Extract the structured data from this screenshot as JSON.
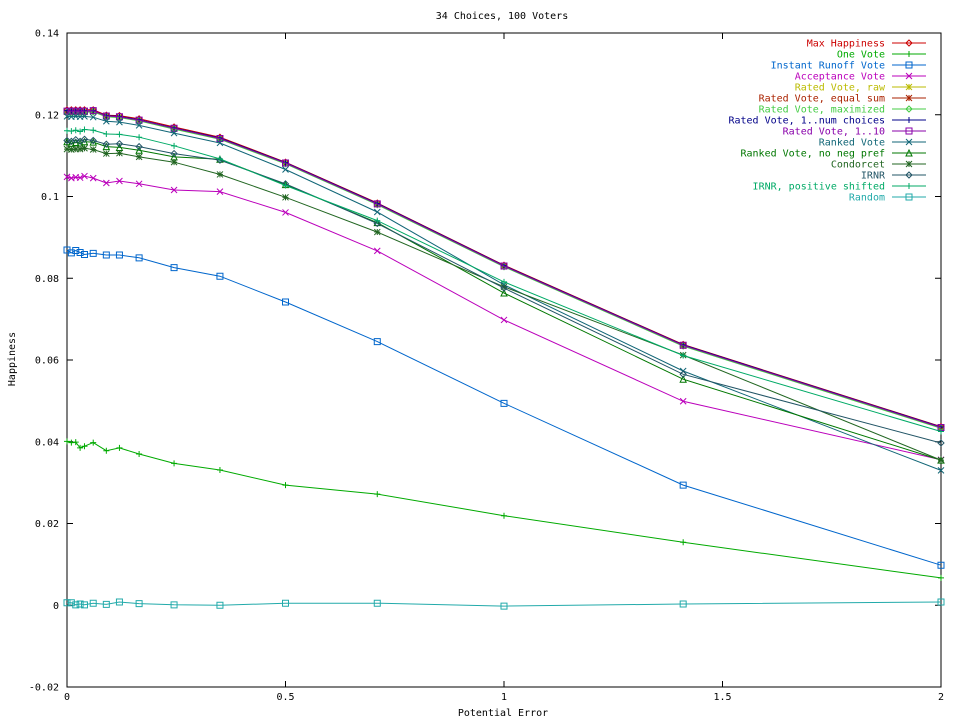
{
  "chart_data": {
    "type": "line",
    "title": "34 Choices, 100 Voters",
    "xlabel": "Potential Error",
    "ylabel": "Happiness",
    "xlim": [
      0,
      2
    ],
    "ylim": [
      -0.02,
      0.14
    ],
    "xticks": [
      0,
      0.5,
      1,
      1.5,
      2
    ],
    "xtick_labels": [
      "0",
      "0.5",
      "1",
      "1.5",
      "2"
    ],
    "yticks": [
      -0.02,
      0,
      0.02,
      0.04,
      0.06,
      0.08,
      0.1,
      0.12,
      0.14
    ],
    "ytick_labels": [
      "-0.02",
      "0",
      "0.02",
      "0.04",
      "0.06",
      "0.08",
      "0.1",
      "0.12",
      "0.14"
    ],
    "grid": false,
    "legend_position": "top-right",
    "x": [
      0,
      0.01,
      0.02,
      0.03,
      0.04,
      0.06,
      0.09,
      0.12,
      0.165,
      0.245,
      0.35,
      0.5,
      0.71,
      1.0,
      1.41,
      2.0
    ],
    "series": [
      {
        "name": "Max Happiness",
        "color": "#cc0000",
        "marker": "diamond",
        "values": [
          0.1212,
          0.1212,
          0.1212,
          0.1212,
          0.1212,
          0.1212,
          0.1199,
          0.1198,
          0.119,
          0.117,
          0.1145,
          0.1084,
          0.0984,
          0.0832,
          0.0638,
          0.0437
        ]
      },
      {
        "name": "One Vote",
        "color": "#00aa00",
        "marker": "plus",
        "values": [
          0.0401,
          0.0398,
          0.0399,
          0.0385,
          0.0389,
          0.0398,
          0.0378,
          0.0385,
          0.037,
          0.0347,
          0.0331,
          0.0294,
          0.0272,
          0.0219,
          0.0154,
          0.0067
        ]
      },
      {
        "name": "Instant Runoff Vote",
        "color": "#0066cc",
        "marker": "square",
        "values": [
          0.0869,
          0.0862,
          0.0868,
          0.0863,
          0.0858,
          0.0861,
          0.0857,
          0.0857,
          0.085,
          0.0826,
          0.0805,
          0.0742,
          0.0645,
          0.0494,
          0.0294,
          0.0098
        ]
      },
      {
        "name": "Acceptance Vote",
        "color": "#bb00bb",
        "marker": "x",
        "values": [
          0.1048,
          0.1045,
          0.1047,
          0.1046,
          0.105,
          0.1045,
          0.1033,
          0.1038,
          0.1031,
          0.1016,
          0.1012,
          0.0961,
          0.0867,
          0.0698,
          0.0499,
          0.0356
        ]
      },
      {
        "name": "Rated Vote, raw",
        "color": "#bbbb00",
        "marker": "star",
        "values": [
          0.1208,
          0.1208,
          0.1208,
          0.1208,
          0.1208,
          0.1209,
          0.1197,
          0.1195,
          0.1187,
          0.1167,
          0.1142,
          0.1082,
          0.0982,
          0.083,
          0.0636,
          0.0435
        ]
      },
      {
        "name": "Rated Vote, equal sum",
        "color": "#aa2200",
        "marker": "star",
        "values": [
          0.1207,
          0.1207,
          0.1207,
          0.1207,
          0.1207,
          0.1208,
          0.1196,
          0.1194,
          0.1186,
          0.1166,
          0.1141,
          0.1081,
          0.0981,
          0.0829,
          0.0635,
          0.0434
        ]
      },
      {
        "name": "Rated Vote, maximized",
        "color": "#44cc44",
        "marker": "diamond",
        "values": [
          0.1206,
          0.1206,
          0.1206,
          0.1206,
          0.1206,
          0.1207,
          0.1195,
          0.1193,
          0.1185,
          0.1165,
          0.114,
          0.108,
          0.098,
          0.0828,
          0.0634,
          0.0433
        ]
      },
      {
        "name": "Rated Vote, 1..num choices",
        "color": "#000088",
        "marker": "plus",
        "values": [
          0.121,
          0.121,
          0.121,
          0.121,
          0.121,
          0.121,
          0.1198,
          0.1196,
          0.1188,
          0.1168,
          0.1143,
          0.1083,
          0.0983,
          0.0831,
          0.0637,
          0.0436
        ]
      },
      {
        "name": "Rated Vote, 1..10",
        "color": "#8800aa",
        "marker": "square",
        "values": [
          0.1209,
          0.1209,
          0.1209,
          0.1209,
          0.1209,
          0.121,
          0.1197,
          0.1195,
          0.1187,
          0.1167,
          0.1142,
          0.1082,
          0.0982,
          0.083,
          0.0636,
          0.0435
        ]
      },
      {
        "name": "Ranked Vote",
        "color": "#116677",
        "marker": "x",
        "values": [
          0.1196,
          0.1195,
          0.1196,
          0.1195,
          0.1196,
          0.1194,
          0.1184,
          0.1182,
          0.1174,
          0.1155,
          0.1131,
          0.1066,
          0.0962,
          0.0784,
          0.0573,
          0.033
        ]
      },
      {
        "name": "Ranked Vote, no neg pref",
        "color": "#007700",
        "marker": "triangle",
        "values": [
          0.1134,
          0.113,
          0.1132,
          0.1131,
          0.1134,
          0.1133,
          0.1122,
          0.112,
          0.1113,
          0.1097,
          0.1091,
          0.1029,
          0.0936,
          0.0764,
          0.0553,
          0.0355
        ]
      },
      {
        "name": "Condorcet",
        "color": "#226622",
        "marker": "star",
        "values": [
          0.1116,
          0.1115,
          0.1116,
          0.1116,
          0.1118,
          0.1115,
          0.1105,
          0.1106,
          0.1097,
          0.1084,
          0.1054,
          0.0998,
          0.0913,
          0.0779,
          0.0612,
          0.0355
        ]
      },
      {
        "name": "IRNR",
        "color": "#225566",
        "marker": "diamond",
        "values": [
          0.1137,
          0.1135,
          0.1139,
          0.1135,
          0.114,
          0.1137,
          0.1128,
          0.1129,
          0.1122,
          0.1105,
          0.1089,
          0.1031,
          0.0934,
          0.0776,
          0.0565,
          0.0397
        ]
      },
      {
        "name": "IRNR, positive shifted",
        "color": "#00aa66",
        "marker": "plus",
        "values": [
          0.1161,
          0.116,
          0.1162,
          0.1159,
          0.1164,
          0.1162,
          0.1153,
          0.1152,
          0.1145,
          0.1124,
          0.1092,
          0.1027,
          0.0941,
          0.0791,
          0.0611,
          0.0425
        ]
      },
      {
        "name": "Random",
        "color": "#22aaaa",
        "marker": "square",
        "values": [
          0.0006,
          0.0006,
          0.0001,
          0.0003,
          0.0001,
          0.0005,
          0.0002,
          0.0008,
          0.0004,
          0.0001,
          0.0,
          0.0005,
          0.0005,
          -0.0002,
          0.0003,
          0.0008
        ]
      }
    ]
  }
}
